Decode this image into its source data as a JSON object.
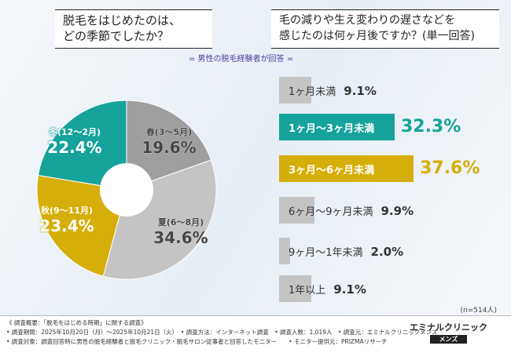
{
  "titles": {
    "q1_line1": "脱毛をはじめたのは、",
    "q1_line2": "どの季節でしたか？",
    "q2_line1": "毛の減りや生え変わりの遅さなどを",
    "q2_line2": "感じたのは何ヶ月後ですか？(単一回答)",
    "respondents": "= 男性の脱毛経験者が回答 ="
  },
  "chart_data": [
    {
      "type": "pie",
      "variant": "donut",
      "start": "top",
      "direction": "clockwise",
      "slices": [
        {
          "label": "春(3～5月)",
          "value": 19.6,
          "display": "19.6%",
          "color": "#9f9f9f"
        },
        {
          "label": "夏(6～8月)",
          "value": 34.6,
          "display": "34.6%",
          "color": "#c4c4c4"
        },
        {
          "label": "秋(9～11月)",
          "value": 23.4,
          "display": "23.4%",
          "color": "#d6ae0a"
        },
        {
          "label": "冬(12～2月)",
          "value": 22.4,
          "display": "22.4%",
          "color": "#15a39c"
        }
      ]
    },
    {
      "type": "bar",
      "orientation": "horizontal",
      "categories": [
        "1ヶ月未満",
        "1ヶ月～3ヶ月未満",
        "3ヶ月～6ヶ月未満",
        "6ヶ月～9ヶ月未満",
        "9ヶ月～1年未満",
        "1年以上"
      ],
      "values": [
        9.1,
        32.3,
        37.6,
        9.9,
        2.0,
        9.1
      ],
      "display": [
        "9.1%",
        "32.3%",
        "37.6%",
        "9.9%",
        "2.0%",
        "9.1%"
      ],
      "colors": [
        "#c4c4c4",
        "#15a39c",
        "#d6ae0a",
        "#c4c4c4",
        "#c4c4c4",
        "#c4c4c4"
      ],
      "highlighted": [
        false,
        true,
        true,
        false,
        false,
        false
      ],
      "note": "(n=514人)"
    }
  ],
  "footer": {
    "line1": "《 調査概要：「脱毛をはじめる時期」に関する調査》",
    "line2": "• 調査期間：2025年10月20日（月）～2025年10月21日（火）　• 調査方法：インターネット調査　• 調査人数：1,019人　• 調査元：エミナルクリニックメンズ",
    "line3": "• 調査対象：調査回答時に男性の脱毛経験者と脱毛クリニック・脱毛サロン従事者と回答したモニター　　• モニター提供元：PRIZMAリサーチ",
    "logo": "エミナルクリニック",
    "logo_sub": "メンズ"
  }
}
